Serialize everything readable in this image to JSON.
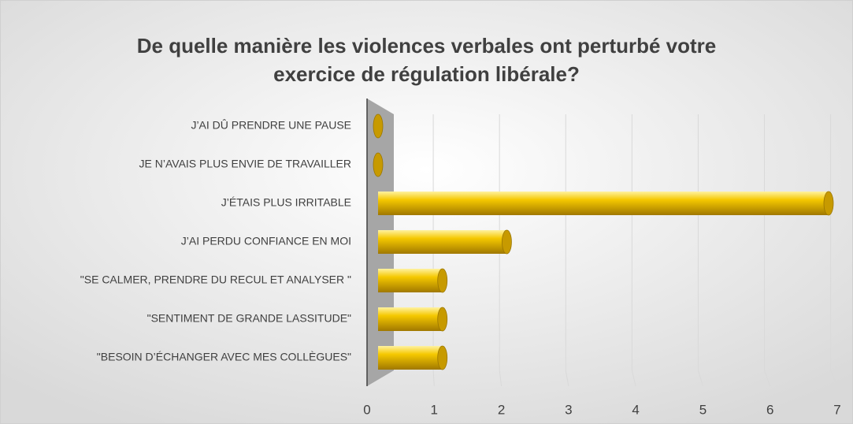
{
  "chart_data": {
    "type": "bar",
    "orientation": "horizontal",
    "title": "De quelle manière les violences verbales ont perturbé votre exercice de régulation libérale?",
    "categories": [
      "J’AI DÛ PRENDRE UNE PAUSE",
      "JE N’AVAIS PLUS ENVIE DE TRAVAILLER",
      "J’ÉTAIS PLUS IRRITABLE",
      "J’AI PERDU CONFIANCE EN MOI",
      "\"SE CALMER, PRENDRE DU RECUL ET ANALYSER \"",
      "\"SENTIMENT DE GRANDE LASSITUDE\"",
      "\"BESOIN D’ÉCHANGER AVEC MES COLLÈGUES\""
    ],
    "values": [
      0,
      0,
      7,
      2,
      1,
      1,
      1
    ],
    "color": "#f2c200",
    "xlim": [
      0,
      7
    ],
    "xticks": [
      0,
      1,
      2,
      3,
      4,
      5,
      6,
      7
    ],
    "grid": true
  }
}
